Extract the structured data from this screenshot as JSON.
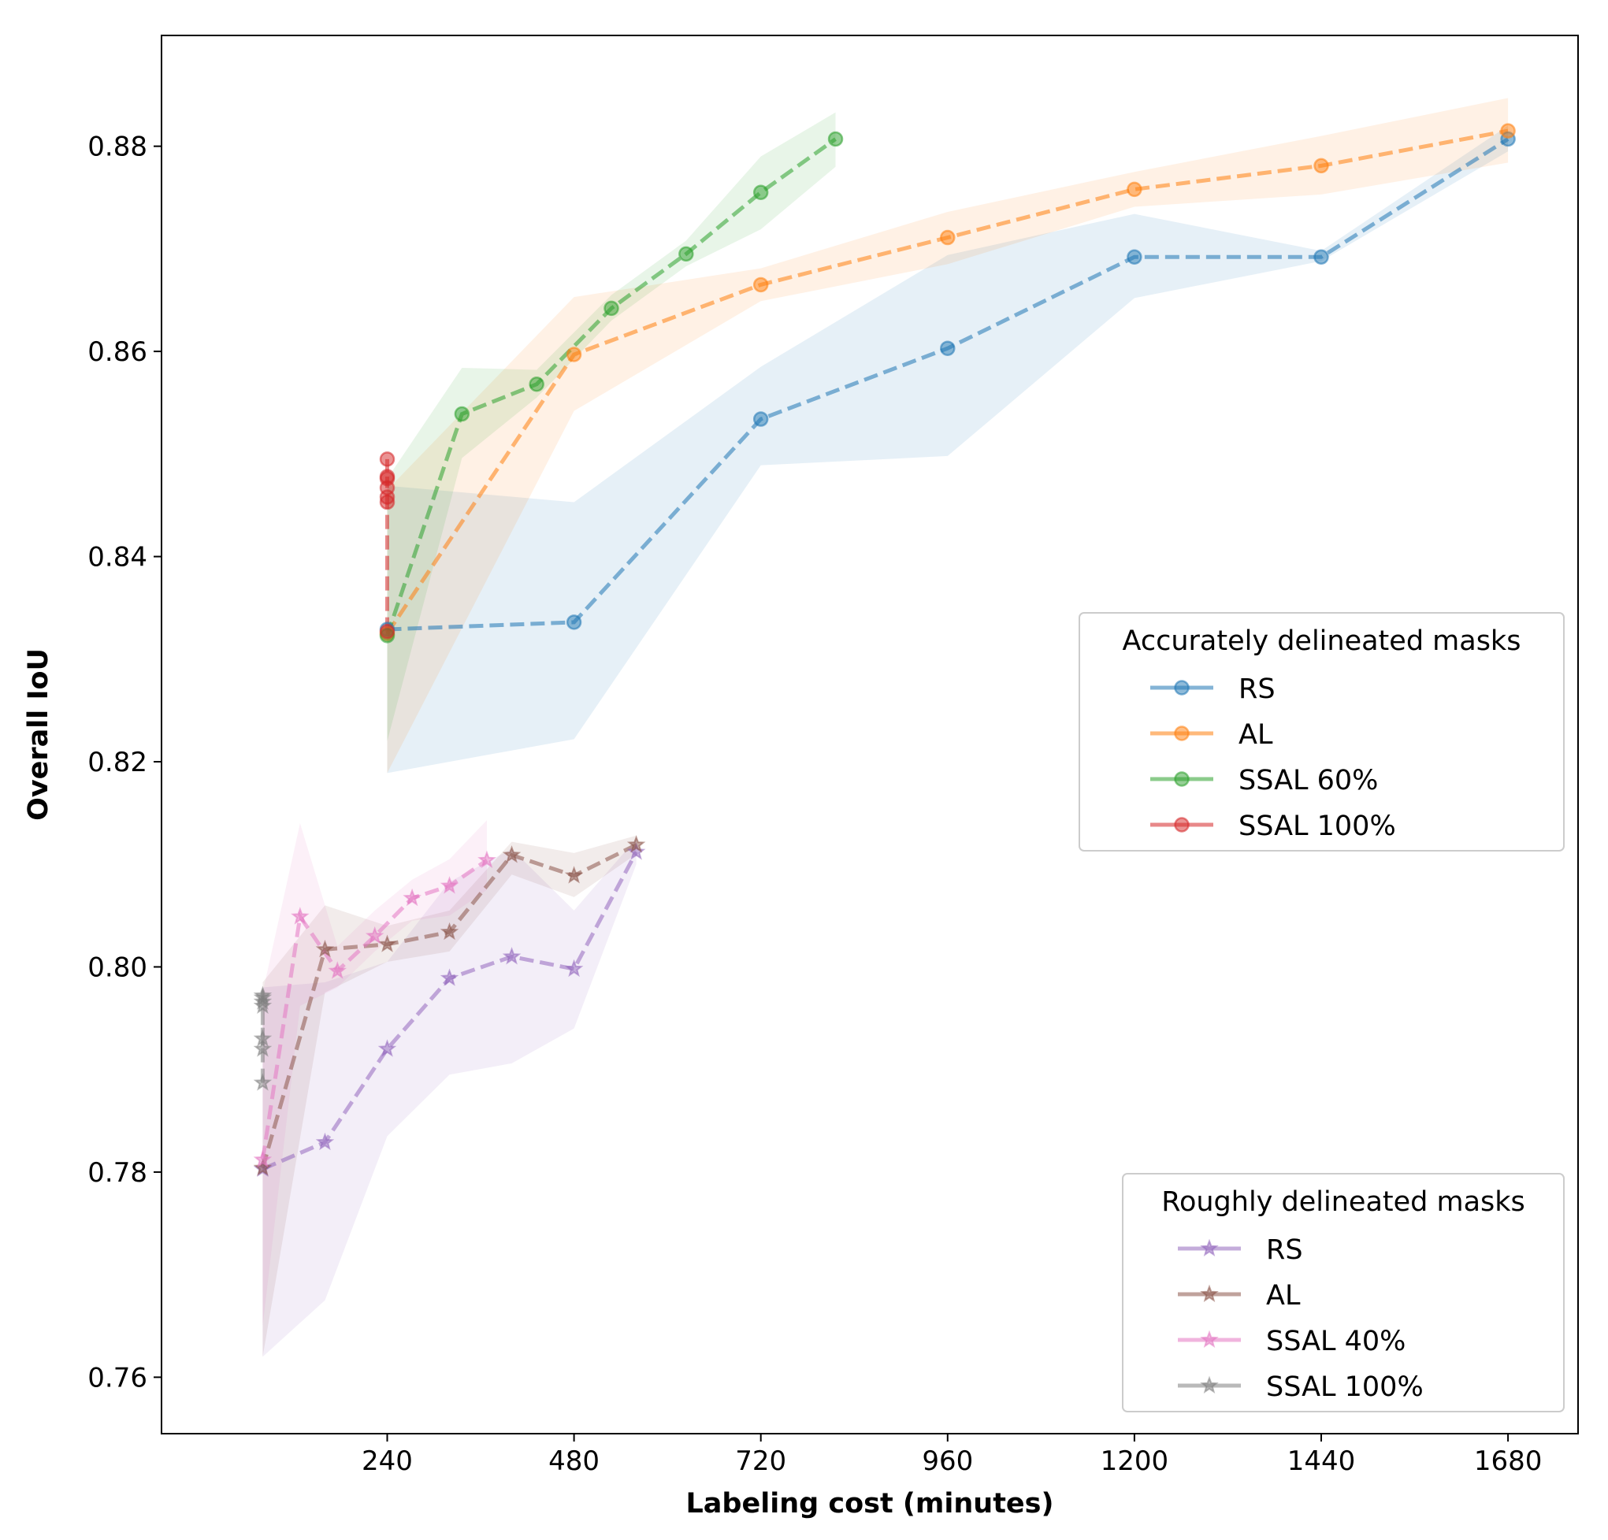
{
  "chart_data": {
    "type": "line",
    "title": "",
    "xlabel": "Labeling cost (minutes)",
    "ylabel": "Overall IoU",
    "xlim": [
      -50,
      1770
    ],
    "ylim": [
      0.7545,
      0.8908
    ],
    "xticks": [
      240,
      480,
      720,
      960,
      1200,
      1440,
      1680
    ],
    "xtick_labels": [
      "240",
      "480",
      "720",
      "960",
      "1200",
      "1440",
      "1680"
    ],
    "yticks": [
      0.76,
      0.78,
      0.8,
      0.82,
      0.84,
      0.86,
      0.88
    ],
    "ytick_labels": [
      "0.76",
      "0.78",
      "0.80",
      "0.82",
      "0.84",
      "0.86",
      "0.88"
    ],
    "grid": false,
    "legends": [
      {
        "title": "Accurately delineated masks",
        "placement": "center-right",
        "entries": [
          "RS",
          "AL",
          "SSAL 60%",
          "SSAL 100%"
        ]
      },
      {
        "title": "Roughly delineated masks",
        "placement": "lower-right",
        "entries": [
          "RS",
          "AL",
          "SSAL 40%",
          "SSAL 100%"
        ]
      }
    ],
    "series": [
      {
        "name": "RS",
        "group": "Accurately delineated masks",
        "marker": "circle",
        "color": "#1f77b4",
        "x": [
          240,
          480,
          720,
          960,
          1200,
          1440,
          1680
        ],
        "y": [
          0.8329,
          0.8336,
          0.8534,
          0.8603,
          0.8692,
          0.8692,
          0.8807
        ],
        "lower": [
          0.8189,
          0.8222,
          0.8489,
          0.8498,
          0.8652,
          0.8688,
          0.8795
        ],
        "upper": [
          0.8469,
          0.8453,
          0.8585,
          0.8694,
          0.8734,
          0.8698,
          0.882
        ]
      },
      {
        "name": "AL",
        "group": "Accurately delineated masks",
        "marker": "circle",
        "color": "#ff7f0e",
        "x": [
          240,
          480,
          720,
          960,
          1200,
          1440,
          1680
        ],
        "y": [
          0.8325,
          0.8597,
          0.8665,
          0.8711,
          0.8758,
          0.8781,
          0.8815
        ],
        "lower": [
          0.8189,
          0.8542,
          0.8649,
          0.8685,
          0.8741,
          0.8753,
          0.8784
        ],
        "upper": [
          0.8465,
          0.8653,
          0.8681,
          0.8736,
          0.8775,
          0.881,
          0.8847
        ]
      },
      {
        "name": "SSAL 60%",
        "group": "Accurately delineated masks",
        "marker": "circle",
        "color": "#2ca02c",
        "x": [
          240,
          336,
          432,
          528,
          624,
          720,
          816
        ],
        "y": [
          0.8323,
          0.8539,
          0.8568,
          0.8642,
          0.8695,
          0.8755,
          0.8807
        ],
        "lower": [
          0.822,
          0.8496,
          0.8555,
          0.863,
          0.8683,
          0.8719,
          0.878
        ],
        "upper": [
          0.8476,
          0.8584,
          0.8582,
          0.8655,
          0.8708,
          0.879,
          0.8833
        ]
      },
      {
        "name": "SSAL 100%",
        "group": "Accurately delineated masks",
        "marker": "circle",
        "color": "#d62728",
        "x": [
          240,
          240,
          240,
          240,
          240,
          240,
          240
        ],
        "y": [
          0.8327,
          0.8453,
          0.8458,
          0.8467,
          0.8478,
          0.8476,
          0.8495
        ]
      },
      {
        "name": "RS",
        "group": "Roughly delineated masks",
        "marker": "star",
        "color": "#9467bd",
        "x": [
          80,
          160,
          240,
          320,
          400,
          480,
          560
        ],
        "y": [
          0.7803,
          0.7829,
          0.792,
          0.7989,
          0.801,
          0.7998,
          0.8112
        ],
        "lower": [
          0.762,
          0.7675,
          0.7835,
          0.7895,
          0.7906,
          0.794,
          0.81
        ],
        "upper": [
          0.798,
          0.7985,
          0.8005,
          0.8083,
          0.8115,
          0.8055,
          0.8125
        ]
      },
      {
        "name": "AL",
        "group": "Roughly delineated masks",
        "marker": "star",
        "color": "#8c564b",
        "x": [
          80,
          160,
          240,
          320,
          400,
          480,
          560
        ],
        "y": [
          0.7804,
          0.8017,
          0.8022,
          0.8034,
          0.8109,
          0.8089,
          0.8119
        ],
        "lower": [
          0.762,
          0.7975,
          0.8005,
          0.8015,
          0.809,
          0.8068,
          0.811
        ],
        "upper": [
          0.7985,
          0.806,
          0.804,
          0.8055,
          0.8122,
          0.8111,
          0.8128
        ]
      },
      {
        "name": "SSAL 40%",
        "group": "Roughly delineated masks",
        "marker": "star",
        "color": "#e377c2",
        "x": [
          80,
          128,
          176,
          224,
          272,
          320,
          368
        ],
        "y": [
          0.7812,
          0.8049,
          0.7996,
          0.803,
          0.8067,
          0.8079,
          0.8104
        ],
        "lower": [
          0.765,
          0.7962,
          0.798,
          0.8015,
          0.8045,
          0.805,
          0.8075
        ],
        "upper": [
          0.7975,
          0.814,
          0.802,
          0.8055,
          0.8085,
          0.8105,
          0.8143
        ]
      },
      {
        "name": "SSAL 100%",
        "group": "Roughly delineated masks",
        "marker": "star",
        "color": "#7f7f7f",
        "x": [
          80,
          80,
          80,
          80,
          80,
          80,
          80
        ],
        "y": [
          0.7887,
          0.793,
          0.7962,
          0.7966,
          0.7972,
          0.797,
          0.792
        ]
      }
    ]
  }
}
